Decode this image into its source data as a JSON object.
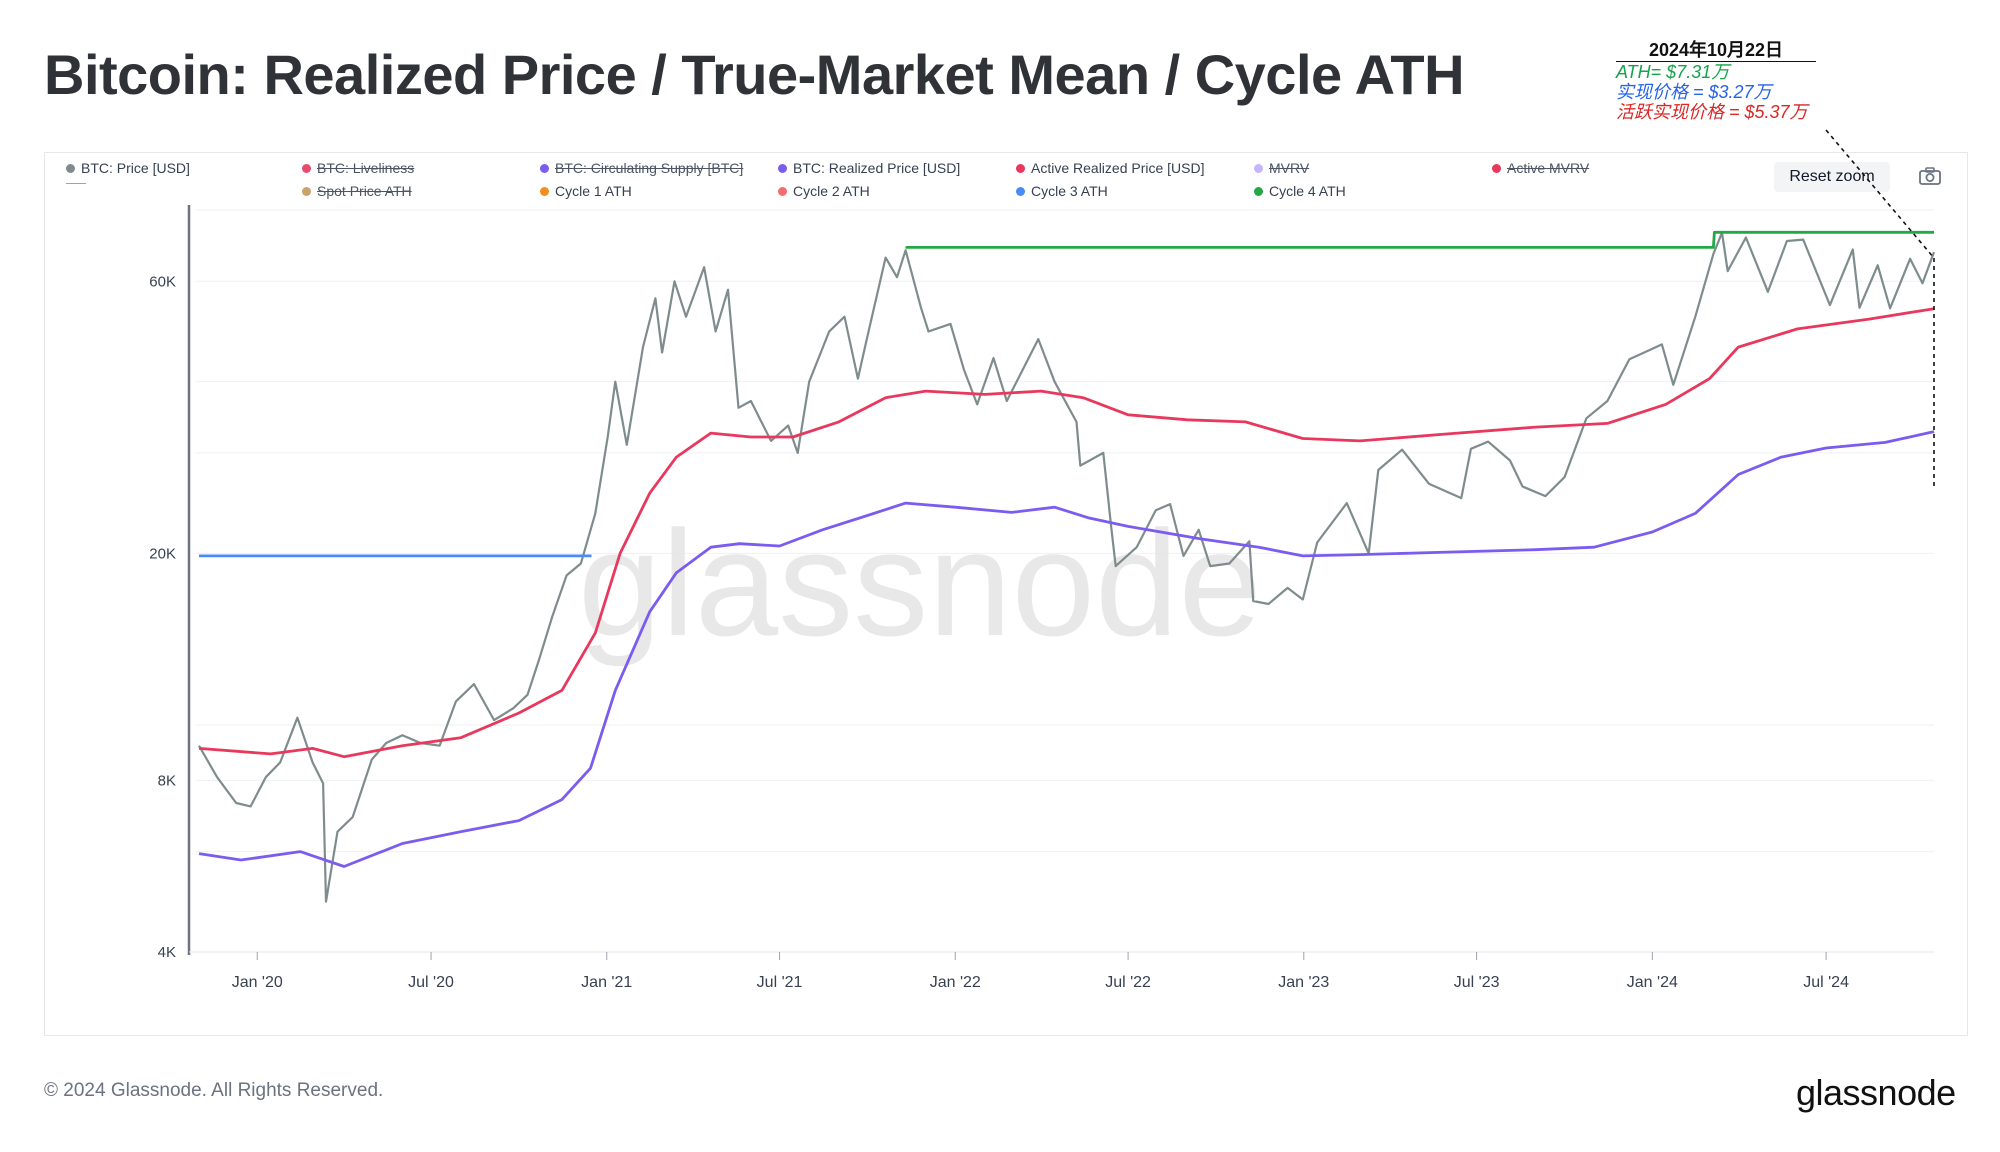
{
  "header": {
    "title": "Bitcoin: Realized Price / True-Market Mean / Cycle ATH"
  },
  "annotation": {
    "date": "2024年10月22日",
    "ath": "ATH= $7.31万",
    "realized": "实现价格 = $3.27万",
    "active_realized": "活跃实现价格 = $5.37万"
  },
  "legend": [
    {
      "label": "BTC: Price [USD]",
      "color": "#7f8c8d",
      "enabled": true,
      "icon": "dot"
    },
    {
      "label": "BTC: Liveliness",
      "color": "#e8496e",
      "enabled": false,
      "icon": "dot"
    },
    {
      "label": "BTC: Circulating Supply [BTC]",
      "color": "#7b5cf0",
      "enabled": false,
      "icon": "dot"
    },
    {
      "label": "BTC: Realized Price [USD]",
      "color": "#7b5cf0",
      "enabled": true,
      "icon": "dot"
    },
    {
      "label": "Active Realized Price [USD]",
      "color": "#e8385d",
      "enabled": true,
      "icon": "dot"
    },
    {
      "label": "MVRV",
      "color": "#c4b5fd",
      "enabled": false,
      "icon": "dot"
    },
    {
      "label": "Active MVRV",
      "color": "#e8385d",
      "enabled": false,
      "icon": "dot"
    },
    {
      "label": "",
      "color": "#9ca3af",
      "enabled": true,
      "icon": "dash"
    },
    {
      "label": "Spot Price ATH",
      "color": "#c9a36a",
      "enabled": false,
      "icon": "dot"
    },
    {
      "label": "Cycle 1 ATH",
      "color": "#f28e1b",
      "enabled": true,
      "icon": "dot"
    },
    {
      "label": "Cycle 2 ATH",
      "color": "#f26d6d",
      "enabled": true,
      "icon": "dot"
    },
    {
      "label": "Cycle 3 ATH",
      "color": "#4b8bf4",
      "enabled": true,
      "icon": "dot"
    },
    {
      "label": "Cycle 4 ATH",
      "color": "#22a844",
      "enabled": true,
      "icon": "dot"
    }
  ],
  "toolbar": {
    "reset_zoom": "Reset zoom",
    "camera_icon": "camera-icon"
  },
  "footer": {
    "copyright": "© 2024 Glassnode. All Rights Reserved.",
    "brand": "glassnode"
  },
  "watermark": "glassnode",
  "chart_data": {
    "type": "line",
    "y_scale": "log",
    "ylim": [
      4000,
      80000
    ],
    "y_ticks": [
      {
        "value": 4000,
        "label": "4K"
      },
      {
        "value": 8000,
        "label": "8K"
      },
      {
        "value": 20000,
        "label": "20K"
      },
      {
        "value": 60000,
        "label": "60K"
      }
    ],
    "xlim": [
      "2019-11-01",
      "2024-10-22"
    ],
    "x_ticks": [
      {
        "date": "2020-01-01",
        "label": "Jan '20"
      },
      {
        "date": "2020-07-01",
        "label": "Jul '20"
      },
      {
        "date": "2021-01-01",
        "label": "Jan '21"
      },
      {
        "date": "2021-07-01",
        "label": "Jul '21"
      },
      {
        "date": "2022-01-01",
        "label": "Jan '22"
      },
      {
        "date": "2022-07-01",
        "label": "Jul '22"
      },
      {
        "date": "2023-01-01",
        "label": "Jan '23"
      },
      {
        "date": "2023-07-01",
        "label": "Jul '23"
      },
      {
        "date": "2024-01-01",
        "label": "Jan '24"
      },
      {
        "date": "2024-07-01",
        "label": "Jul '24"
      }
    ],
    "series": [
      {
        "name": "BTC: Price [USD]",
        "color": "#7f8c8d",
        "width": 2.2,
        "points": [
          [
            "2019-11-01",
            9200
          ],
          [
            "2019-11-20",
            8100
          ],
          [
            "2019-12-10",
            7300
          ],
          [
            "2019-12-25",
            7200
          ],
          [
            "2020-01-10",
            8100
          ],
          [
            "2020-01-25",
            8600
          ],
          [
            "2020-02-12",
            10300
          ],
          [
            "2020-02-28",
            8600
          ],
          [
            "2020-03-10",
            7900
          ],
          [
            "2020-03-13",
            4900
          ],
          [
            "2020-03-25",
            6500
          ],
          [
            "2020-04-10",
            6900
          ],
          [
            "2020-04-30",
            8700
          ],
          [
            "2020-05-15",
            9300
          ],
          [
            "2020-06-01",
            9600
          ],
          [
            "2020-06-20",
            9300
          ],
          [
            "2020-07-10",
            9200
          ],
          [
            "2020-07-27",
            11000
          ],
          [
            "2020-08-15",
            11800
          ],
          [
            "2020-09-05",
            10200
          ],
          [
            "2020-09-25",
            10700
          ],
          [
            "2020-10-10",
            11300
          ],
          [
            "2020-10-22",
            13000
          ],
          [
            "2020-11-05",
            15500
          ],
          [
            "2020-11-20",
            18300
          ],
          [
            "2020-12-05",
            19200
          ],
          [
            "2020-12-20",
            23500
          ],
          [
            "2021-01-02",
            32000
          ],
          [
            "2021-01-10",
            40000
          ],
          [
            "2021-01-22",
            31000
          ],
          [
            "2021-02-08",
            46000
          ],
          [
            "2021-02-21",
            56000
          ],
          [
            "2021-02-28",
            45000
          ],
          [
            "2021-03-13",
            60000
          ],
          [
            "2021-03-25",
            52000
          ],
          [
            "2021-04-13",
            63500
          ],
          [
            "2021-04-25",
            49000
          ],
          [
            "2021-05-08",
            58000
          ],
          [
            "2021-05-19",
            36000
          ],
          [
            "2021-06-01",
            37000
          ],
          [
            "2021-06-22",
            31500
          ],
          [
            "2021-07-10",
            33500
          ],
          [
            "2021-07-20",
            30000
          ],
          [
            "2021-08-01",
            40000
          ],
          [
            "2021-08-22",
            49000
          ],
          [
            "2021-09-07",
            52000
          ],
          [
            "2021-09-21",
            40500
          ],
          [
            "2021-10-01",
            48000
          ],
          [
            "2021-10-20",
            66000
          ],
          [
            "2021-11-01",
            61000
          ],
          [
            "2021-11-10",
            68000
          ],
          [
            "2021-11-26",
            54000
          ],
          [
            "2021-12-04",
            49000
          ],
          [
            "2021-12-27",
            50500
          ],
          [
            "2022-01-10",
            42000
          ],
          [
            "2022-01-24",
            36500
          ],
          [
            "2022-02-10",
            44000
          ],
          [
            "2022-02-24",
            37000
          ],
          [
            "2022-03-29",
            47500
          ],
          [
            "2022-04-15",
            40000
          ],
          [
            "2022-05-08",
            34000
          ],
          [
            "2022-05-12",
            28500
          ],
          [
            "2022-06-05",
            30000
          ],
          [
            "2022-06-13",
            22500
          ],
          [
            "2022-06-18",
            19000
          ],
          [
            "2022-07-10",
            20500
          ],
          [
            "2022-07-30",
            23800
          ],
          [
            "2022-08-14",
            24400
          ],
          [
            "2022-08-28",
            19800
          ],
          [
            "2022-09-13",
            22000
          ],
          [
            "2022-09-25",
            19000
          ],
          [
            "2022-10-15",
            19200
          ],
          [
            "2022-11-05",
            21000
          ],
          [
            "2022-11-09",
            16500
          ],
          [
            "2022-11-25",
            16300
          ],
          [
            "2022-12-15",
            17400
          ],
          [
            "2022-12-31",
            16600
          ],
          [
            "2023-01-15",
            20900
          ],
          [
            "2023-02-15",
            24500
          ],
          [
            "2023-03-10",
            20000
          ],
          [
            "2023-03-20",
            28000
          ],
          [
            "2023-04-14",
            30400
          ],
          [
            "2023-05-12",
            26500
          ],
          [
            "2023-06-15",
            25000
          ],
          [
            "2023-06-25",
            30500
          ],
          [
            "2023-07-13",
            31400
          ],
          [
            "2023-08-05",
            29100
          ],
          [
            "2023-08-18",
            26200
          ],
          [
            "2023-09-11",
            25200
          ],
          [
            "2023-10-01",
            27200
          ],
          [
            "2023-10-24",
            34500
          ],
          [
            "2023-11-15",
            37000
          ],
          [
            "2023-12-08",
            43800
          ],
          [
            "2024-01-11",
            46500
          ],
          [
            "2024-01-23",
            39500
          ],
          [
            "2024-02-15",
            52000
          ],
          [
            "2024-03-05",
            67000
          ],
          [
            "2024-03-14",
            73000
          ],
          [
            "2024-03-20",
            62500
          ],
          [
            "2024-04-08",
            71600
          ],
          [
            "2024-05-01",
            57500
          ],
          [
            "2024-05-21",
            70600
          ],
          [
            "2024-06-07",
            71000
          ],
          [
            "2024-07-05",
            54500
          ],
          [
            "2024-07-29",
            68200
          ],
          [
            "2024-08-05",
            53900
          ],
          [
            "2024-08-24",
            64000
          ],
          [
            "2024-09-06",
            53800
          ],
          [
            "2024-09-27",
            65700
          ],
          [
            "2024-10-10",
            59500
          ],
          [
            "2024-10-22",
            67500
          ]
        ]
      },
      {
        "name": "BTC: Realized Price [USD]",
        "color": "#7b5cf0",
        "width": 2.8,
        "points": [
          [
            "2019-11-01",
            5950
          ],
          [
            "2019-12-15",
            5800
          ],
          [
            "2020-02-15",
            6000
          ],
          [
            "2020-04-01",
            5650
          ],
          [
            "2020-06-01",
            6200
          ],
          [
            "2020-08-01",
            6500
          ],
          [
            "2020-10-01",
            6800
          ],
          [
            "2020-11-15",
            7400
          ],
          [
            "2020-12-15",
            8400
          ],
          [
            "2021-01-10",
            11500
          ],
          [
            "2021-02-15",
            15800
          ],
          [
            "2021-03-15",
            18500
          ],
          [
            "2021-04-20",
            20500
          ],
          [
            "2021-05-20",
            20800
          ],
          [
            "2021-07-01",
            20600
          ],
          [
            "2021-08-15",
            22000
          ],
          [
            "2021-10-01",
            23300
          ],
          [
            "2021-11-10",
            24500
          ],
          [
            "2022-01-01",
            24100
          ],
          [
            "2022-03-01",
            23600
          ],
          [
            "2022-04-15",
            24100
          ],
          [
            "2022-05-20",
            23100
          ],
          [
            "2022-07-01",
            22300
          ],
          [
            "2022-09-15",
            21200
          ],
          [
            "2022-11-15",
            20500
          ],
          [
            "2022-12-31",
            19800
          ],
          [
            "2023-03-01",
            19900
          ],
          [
            "2023-06-01",
            20100
          ],
          [
            "2023-09-01",
            20300
          ],
          [
            "2023-11-01",
            20500
          ],
          [
            "2024-01-01",
            21800
          ],
          [
            "2024-02-15",
            23500
          ],
          [
            "2024-03-31",
            27500
          ],
          [
            "2024-05-15",
            29500
          ],
          [
            "2024-07-01",
            30600
          ],
          [
            "2024-09-01",
            31300
          ],
          [
            "2024-10-22",
            32700
          ]
        ]
      },
      {
        "name": "Active Realized Price [USD]",
        "color": "#e8385d",
        "width": 2.8,
        "points": [
          [
            "2019-11-01",
            9100
          ],
          [
            "2020-01-15",
            8900
          ],
          [
            "2020-02-28",
            9100
          ],
          [
            "2020-04-01",
            8800
          ],
          [
            "2020-06-01",
            9200
          ],
          [
            "2020-08-01",
            9500
          ],
          [
            "2020-10-01",
            10500
          ],
          [
            "2020-11-15",
            11500
          ],
          [
            "2020-12-20",
            14500
          ],
          [
            "2021-01-15",
            20000
          ],
          [
            "2021-02-15",
            25500
          ],
          [
            "2021-03-15",
            29500
          ],
          [
            "2021-04-20",
            32500
          ],
          [
            "2021-06-01",
            32000
          ],
          [
            "2021-07-15",
            32000
          ],
          [
            "2021-09-01",
            34000
          ],
          [
            "2021-10-20",
            37500
          ],
          [
            "2021-12-01",
            38500
          ],
          [
            "2022-02-01",
            38000
          ],
          [
            "2022-04-01",
            38500
          ],
          [
            "2022-05-15",
            37500
          ],
          [
            "2022-07-01",
            35000
          ],
          [
            "2022-09-01",
            34300
          ],
          [
            "2022-11-01",
            34000
          ],
          [
            "2022-12-31",
            31800
          ],
          [
            "2023-03-01",
            31500
          ],
          [
            "2023-06-01",
            32400
          ],
          [
            "2023-09-01",
            33300
          ],
          [
            "2023-11-15",
            33800
          ],
          [
            "2024-01-15",
            36500
          ],
          [
            "2024-03-01",
            40500
          ],
          [
            "2024-03-31",
            46000
          ],
          [
            "2024-06-01",
            49500
          ],
          [
            "2024-08-15",
            51500
          ],
          [
            "2024-10-22",
            53700
          ]
        ]
      },
      {
        "name": "Cycle 3 ATH",
        "color": "#4b8bf4",
        "width": 2.8,
        "points": [
          [
            "2019-11-01",
            19800
          ],
          [
            "2020-12-16",
            19800
          ]
        ]
      },
      {
        "name": "Cycle 4 ATH",
        "color": "#22a844",
        "width": 2.8,
        "points": [
          [
            "2021-11-10",
            68800
          ],
          [
            "2024-03-05",
            68800
          ],
          [
            "2024-03-06",
            73100
          ],
          [
            "2024-10-22",
            73100
          ]
        ]
      }
    ]
  }
}
